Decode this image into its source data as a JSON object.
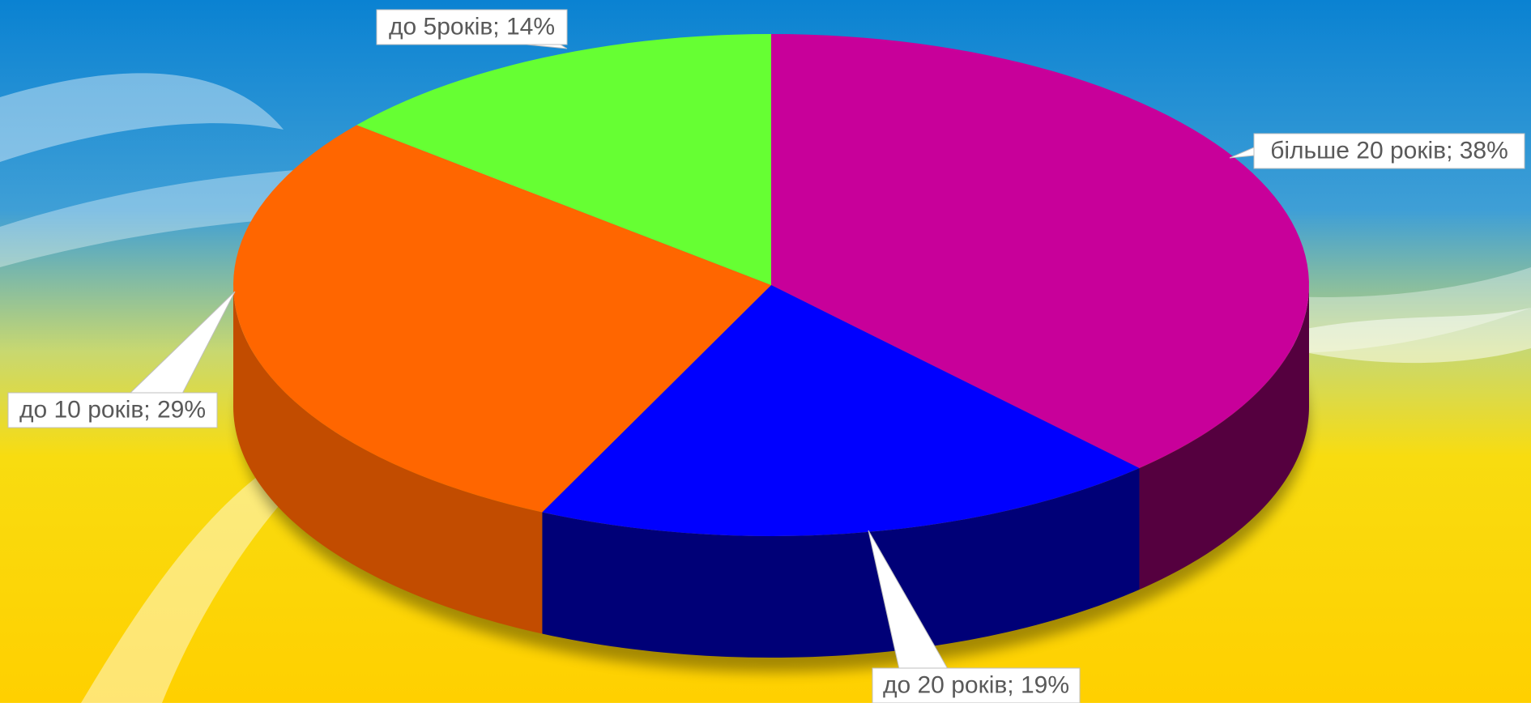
{
  "chart_data": {
    "type": "pie3d",
    "values": [
      38,
      19,
      29,
      14
    ],
    "value_labels": [
      "більше 20 років; 38%",
      "до 20 років; 19%",
      "до 10 років; 29%",
      "до 5років; 14%"
    ],
    "colors": [
      "#c8009a",
      "#0000ff",
      "#ff6600",
      "#66ff33"
    ],
    "side_colors": [
      "#55003f",
      "#000077",
      "#c24c00",
      "#3fa020"
    ]
  }
}
